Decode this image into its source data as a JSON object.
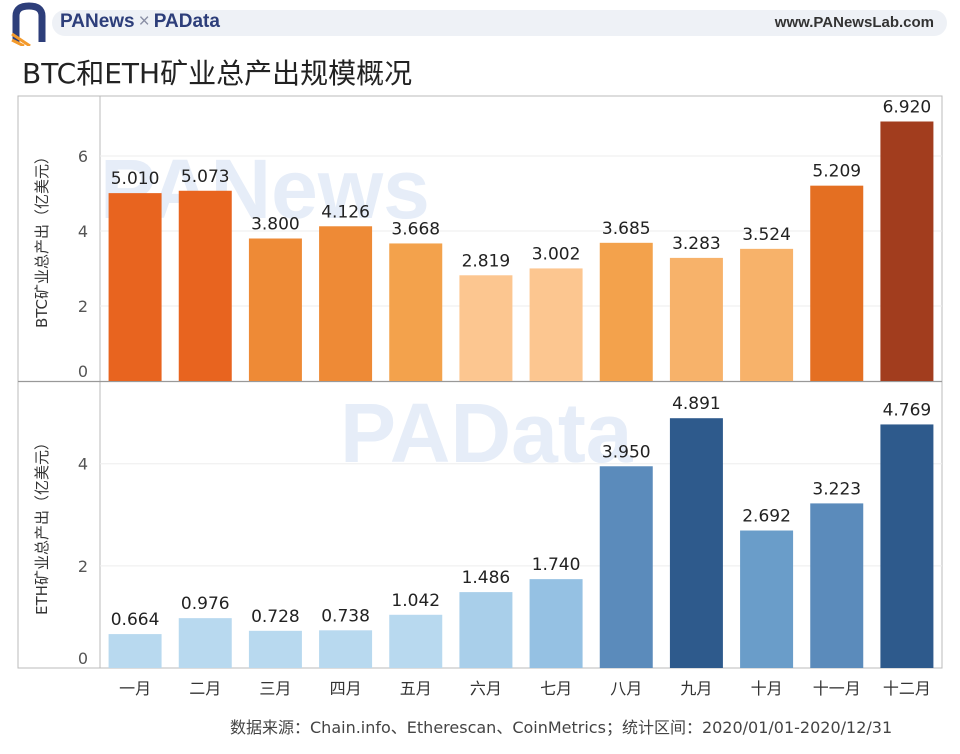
{
  "header": {
    "brand_pa": "PANews",
    "brand_cross": "×",
    "brand_data": "PAData",
    "site_url": "www.PANewsLab.com"
  },
  "watermarks": {
    "top": "PANews",
    "bottom": "PAData"
  },
  "colors": {
    "btc_scale": [
      "#fcc690",
      "#f7b26a",
      "#f3a24c",
      "#ee8a36",
      "#e46f22",
      "#e8641f",
      "#a23d1e"
    ],
    "eth_scale": [
      "#b8d9ef",
      "#a9cfea",
      "#95c1e3",
      "#6a9dc9",
      "#5b8bbb",
      "#4674a6",
      "#2e5a8c"
    ],
    "axis": "#bbbbbb",
    "brand": "#2d3e7a"
  },
  "chart_data": {
    "type": "bar",
    "title": "BTC和ETH矿业总产出规模概况",
    "categories": [
      "一月",
      "二月",
      "三月",
      "四月",
      "五月",
      "六月",
      "七月",
      "八月",
      "九月",
      "十月",
      "十一月",
      "十二月"
    ],
    "panels": [
      {
        "name": "BTC",
        "ylabel": "BTC矿业总产出（亿美元）",
        "ylim": [
          0,
          7.6
        ],
        "yticks": [
          0,
          2,
          4,
          6
        ],
        "values": [
          5.01,
          5.073,
          3.8,
          4.126,
          3.668,
          2.819,
          3.002,
          3.685,
          3.283,
          3.524,
          5.209,
          6.92
        ],
        "labels": [
          "5.010",
          "5.073",
          "3.800",
          "4.126",
          "3.668",
          "2.819",
          "3.002",
          "3.685",
          "3.283",
          "3.524",
          "5.209",
          "6.920"
        ],
        "color_levels": [
          5,
          5,
          3,
          3,
          2,
          0,
          0,
          2,
          1,
          1,
          4,
          6
        ]
      },
      {
        "name": "ETH",
        "ylabel": "ETH矿业总产出（亿美元）",
        "ylim": [
          0,
          5.6
        ],
        "yticks": [
          0,
          2,
          4
        ],
        "values": [
          0.664,
          0.976,
          0.728,
          0.738,
          1.042,
          1.486,
          1.74,
          3.95,
          4.891,
          2.692,
          3.223,
          4.769
        ],
        "labels": [
          "0.664",
          "0.976",
          "0.728",
          "0.738",
          "1.042",
          "1.486",
          "1.740",
          "3.950",
          "4.891",
          "2.692",
          "3.223",
          "4.769"
        ],
        "color_levels": [
          0,
          0,
          0,
          0,
          0,
          1,
          2,
          4,
          6,
          3,
          4,
          6
        ]
      }
    ],
    "grid": true,
    "legend": "none"
  },
  "footer": {
    "source": "数据来源：Chain.info、Etherescan、CoinMetrics；统计区间：2020/01/01-2020/12/31"
  }
}
